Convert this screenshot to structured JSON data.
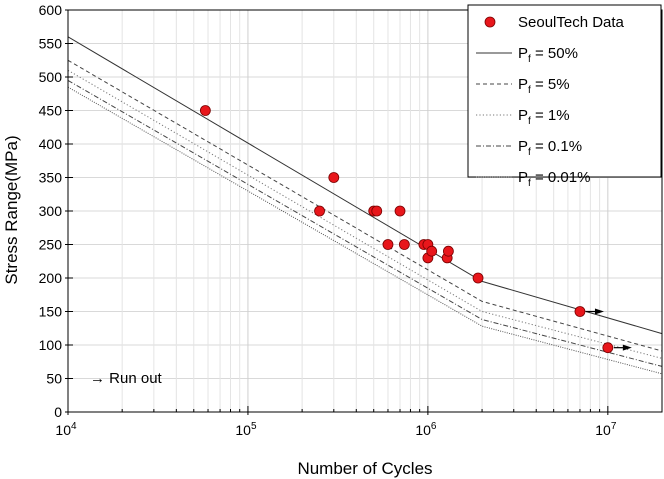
{
  "chart_data": {
    "type": "scatter",
    "xlabel": "Number of Cycles",
    "ylabel": "Stress Range(MPa)",
    "xscale": "log",
    "xlim": [
      10000,
      20000000
    ],
    "ylim": [
      0,
      600
    ],
    "x_ticks": [
      {
        "base": "10",
        "exp": "4",
        "value": 10000
      },
      {
        "base": "10",
        "exp": "5",
        "value": 100000
      },
      {
        "base": "10",
        "exp": "6",
        "value": 1000000
      },
      {
        "base": "10",
        "exp": "7",
        "value": 10000000
      }
    ],
    "y_ticks": [
      {
        "label": "0",
        "value": 0
      },
      {
        "label": "50",
        "value": 50
      },
      {
        "label": "100",
        "value": 100
      },
      {
        "label": "150",
        "value": 150
      },
      {
        "label": "200",
        "value": 200
      },
      {
        "label": "250",
        "value": 250
      },
      {
        "label": "300",
        "value": 300
      },
      {
        "label": "350",
        "value": 350
      },
      {
        "label": "400",
        "value": 400
      },
      {
        "label": "450",
        "value": 450
      },
      {
        "label": "500",
        "value": 500
      },
      {
        "label": "550",
        "value": 550
      },
      {
        "label": "600",
        "value": 600
      }
    ],
    "grid": true,
    "legend_position": "top-right",
    "scatter_series": {
      "name": "SeoulTech Data",
      "color": "#e8161b",
      "points": [
        {
          "x": 58000,
          "y": 450
        },
        {
          "x": 250000,
          "y": 300
        },
        {
          "x": 300000,
          "y": 350
        },
        {
          "x": 500000,
          "y": 300
        },
        {
          "x": 520000,
          "y": 300
        },
        {
          "x": 600000,
          "y": 250
        },
        {
          "x": 700000,
          "y": 300
        },
        {
          "x": 740000,
          "y": 250
        },
        {
          "x": 950000,
          "y": 250
        },
        {
          "x": 1000000,
          "y": 250
        },
        {
          "x": 1000000,
          "y": 230
        },
        {
          "x": 1050000,
          "y": 240
        },
        {
          "x": 1280000,
          "y": 230
        },
        {
          "x": 1300000,
          "y": 240
        },
        {
          "x": 1900000,
          "y": 200
        },
        {
          "x": 7000000,
          "y": 150,
          "runout": true
        },
        {
          "x": 10000000,
          "y": 96,
          "runout": true
        }
      ]
    },
    "line_series": [
      {
        "name_base": "P",
        "name_sub": "f",
        "name_tail": " = 50%",
        "style": "solid",
        "color": "#333333",
        "points": [
          {
            "x": 10000,
            "y": 560
          },
          {
            "x": 2000000,
            "y": 195
          },
          {
            "x": 20000000,
            "y": 117
          }
        ]
      },
      {
        "name_base": "P",
        "name_sub": "f",
        "name_tail": " = 5%",
        "style": "dashed",
        "color": "#444444",
        "points": [
          {
            "x": 10000,
            "y": 525
          },
          {
            "x": 2000000,
            "y": 165
          },
          {
            "x": 20000000,
            "y": 91
          }
        ]
      },
      {
        "name_base": "P",
        "name_sub": "f",
        "name_tail": " = 1%",
        "style": "dotted",
        "color": "#777777",
        "points": [
          {
            "x": 10000,
            "y": 510
          },
          {
            "x": 2000000,
            "y": 150
          },
          {
            "x": 20000000,
            "y": 80
          }
        ]
      },
      {
        "name_base": "P",
        "name_sub": "f",
        "name_tail": " = 0.1%",
        "style": "dashdot",
        "color": "#444444",
        "points": [
          {
            "x": 10000,
            "y": 495
          },
          {
            "x": 2000000,
            "y": 138
          },
          {
            "x": 20000000,
            "y": 68
          }
        ]
      },
      {
        "name_base": "P",
        "name_sub": "f",
        "name_tail": " = 0.01%",
        "style": "densedot",
        "color": "#555555",
        "points": [
          {
            "x": 10000,
            "y": 485
          },
          {
            "x": 2000000,
            "y": 128
          },
          {
            "x": 20000000,
            "y": 57
          }
        ]
      }
    ],
    "annotation": "→ Run out"
  }
}
